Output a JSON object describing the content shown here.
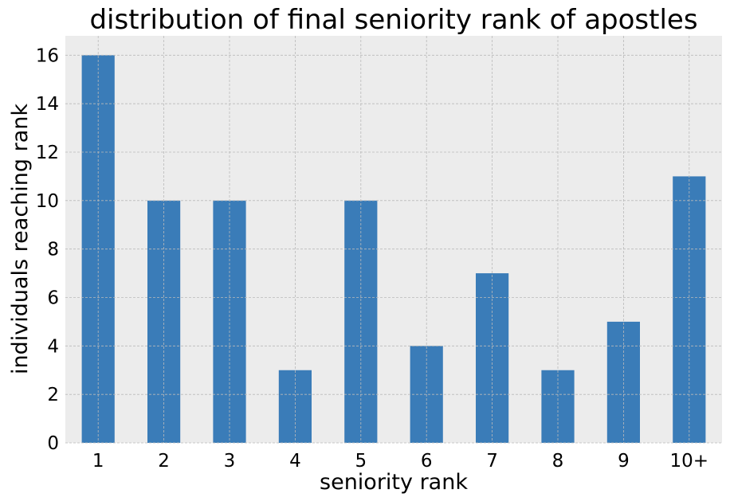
{
  "chart_data": {
    "type": "bar",
    "title": "distribution of final seniority rank of apostles",
    "xlabel": "seniority rank",
    "ylabel": "individuals reaching rank",
    "categories": [
      "1",
      "2",
      "3",
      "4",
      "5",
      "6",
      "7",
      "8",
      "9",
      "10+"
    ],
    "values": [
      16,
      10,
      10,
      3,
      10,
      4,
      7,
      3,
      5,
      11
    ],
    "ylim": [
      0,
      16.8
    ],
    "yticks": [
      0,
      2,
      4,
      6,
      8,
      10,
      12,
      14,
      16
    ],
    "grid": true,
    "bar_color": "#3a7cb8",
    "plot_background": "#ececec"
  }
}
